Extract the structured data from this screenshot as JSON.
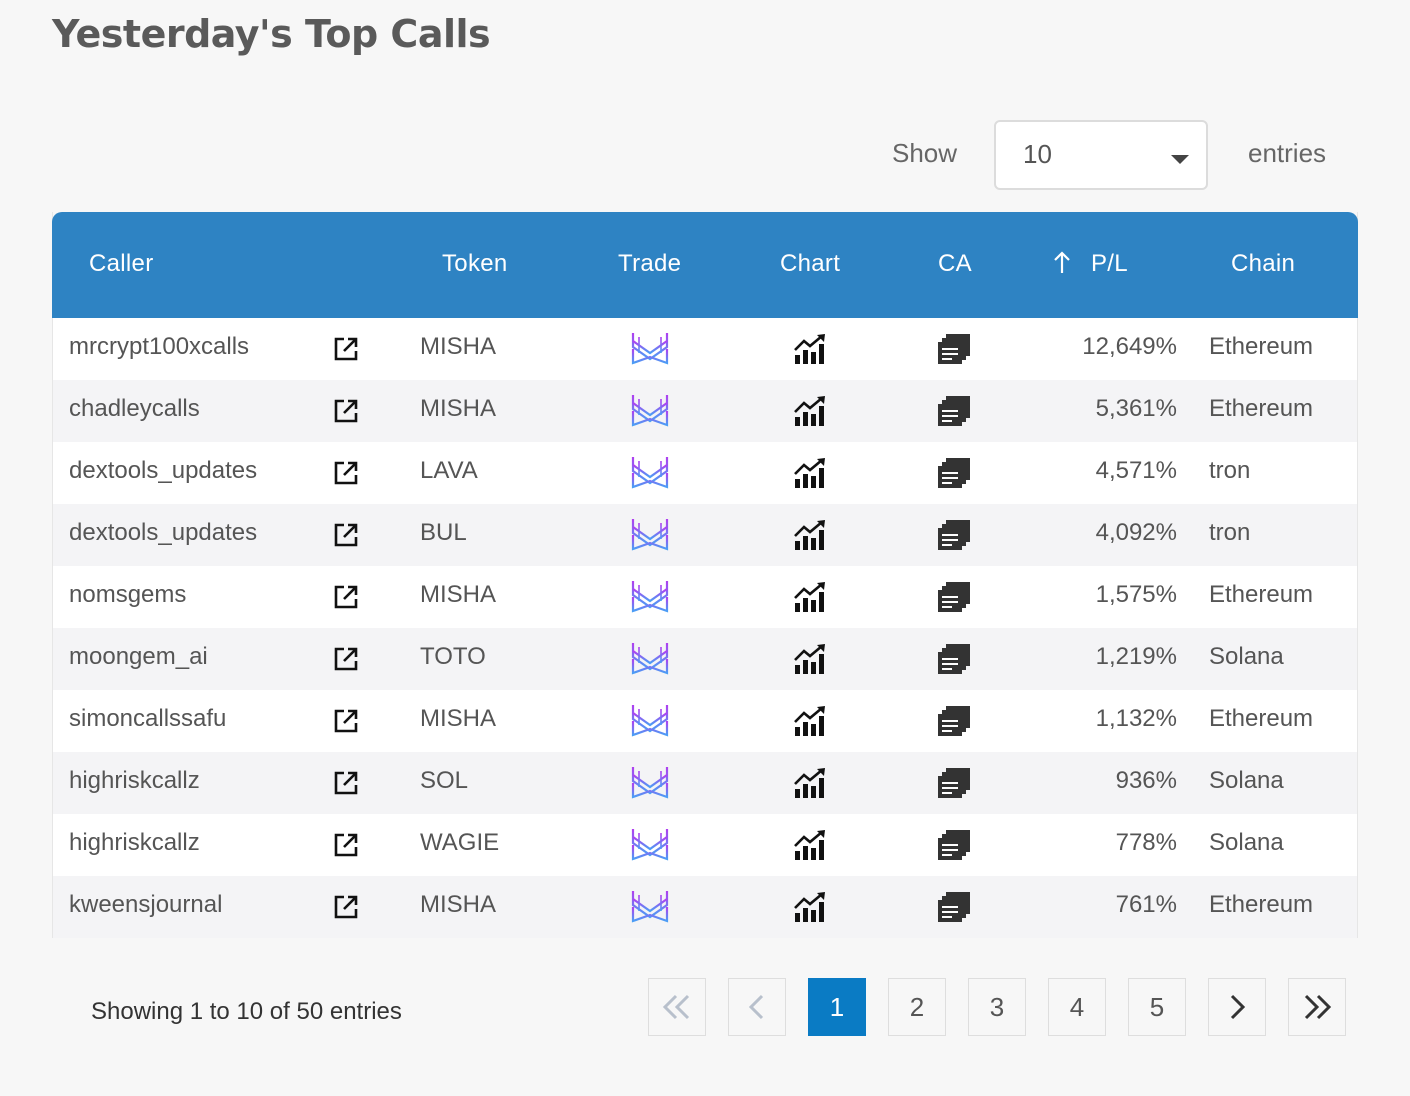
{
  "page": {
    "title": "Yesterday's Top Calls"
  },
  "length_menu": {
    "show_label": "Show",
    "selected": "10",
    "entries_label": "entries"
  },
  "table": {
    "headers": {
      "caller": "Caller",
      "token": "Token",
      "trade": "Trade",
      "chart": "Chart",
      "ca": "CA",
      "pl": "P/L",
      "chain": "Chain"
    },
    "sort": {
      "column": "P/L",
      "direction": "descending"
    },
    "icons": {
      "link": "external-link-icon",
      "trade": "trade-logo-icon",
      "chart": "chart-icon",
      "ca": "copy-icon"
    },
    "rows": [
      {
        "caller": "mrcrypt100xcalls",
        "token": "MISHA",
        "pl": "12,649%",
        "chain": "Ethereum"
      },
      {
        "caller": "chadleycalls",
        "token": "MISHA",
        "pl": "5,361%",
        "chain": "Ethereum"
      },
      {
        "caller": "dextools_updates",
        "token": "LAVA",
        "pl": "4,571%",
        "chain": "tron"
      },
      {
        "caller": "dextools_updates",
        "token": "BUL",
        "pl": "4,092%",
        "chain": "tron"
      },
      {
        "caller": "nomsgems",
        "token": "MISHA",
        "pl": "1,575%",
        "chain": "Ethereum"
      },
      {
        "caller": "moongem_ai",
        "token": "TOTO",
        "pl": "1,219%",
        "chain": "Solana"
      },
      {
        "caller": "simoncallssafu",
        "token": "MISHA",
        "pl": "1,132%",
        "chain": "Ethereum"
      },
      {
        "caller": "highriskcallz",
        "token": "SOL",
        "pl": "936%",
        "chain": "Solana"
      },
      {
        "caller": "highriskcallz",
        "token": "WAGIE",
        "pl": "778%",
        "chain": "Solana"
      },
      {
        "caller": "kweensjournal",
        "token": "MISHA",
        "pl": "761%",
        "chain": "Ethereum"
      }
    ]
  },
  "footer": {
    "info": "Showing 1 to 10 of 50 entries"
  },
  "pagination": {
    "first_icon": "double-chevron-left-icon",
    "prev_icon": "chevron-left-icon",
    "pages": [
      "1",
      "2",
      "3",
      "4",
      "5"
    ],
    "current": "1",
    "next_icon": "chevron-right-icon",
    "last_icon": "double-chevron-right-icon"
  },
  "colors": {
    "header_bg": "#2e83c3",
    "active_page": "#0a7bc4",
    "page_bg": "#f7f7f7"
  }
}
